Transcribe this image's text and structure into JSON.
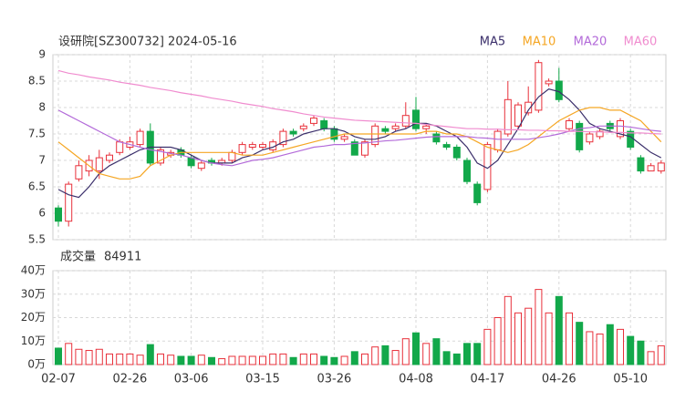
{
  "chart_data": {
    "type": "candlestick",
    "title": "设研院[SZ300732] 2024-05-16",
    "categories": [
      "02-07",
      null,
      null,
      null,
      null,
      null,
      null,
      "02-26",
      null,
      null,
      null,
      null,
      null,
      "03-06",
      null,
      null,
      null,
      null,
      null,
      null,
      "03-15",
      null,
      null,
      null,
      null,
      null,
      null,
      "03-26",
      null,
      null,
      null,
      null,
      null,
      null,
      null,
      "04-08",
      null,
      null,
      null,
      null,
      null,
      null,
      "04-17",
      null,
      null,
      null,
      null,
      null,
      null,
      "04-26",
      null,
      null,
      null,
      null,
      null,
      null,
      "05-10",
      null,
      null,
      null
    ],
    "open": [
      6.1,
      5.85,
      6.65,
      6.8,
      6.8,
      7.0,
      7.15,
      7.25,
      7.3,
      7.55,
      6.95,
      7.1,
      7.2,
      7.05,
      6.85,
      7.0,
      6.95,
      7.0,
      7.15,
      7.25,
      7.25,
      7.2,
      7.3,
      7.55,
      7.6,
      7.7,
      7.75,
      7.6,
      7.4,
      7.35,
      7.1,
      7.3,
      7.6,
      7.6,
      7.65,
      7.95,
      7.6,
      7.5,
      7.3,
      7.25,
      7.0,
      6.55,
      6.45,
      7.2,
      7.5,
      7.65,
      7.9,
      7.95,
      8.45,
      8.5,
      7.6,
      7.7,
      7.35,
      7.45,
      7.7,
      7.45,
      7.55,
      7.05,
      6.8,
      6.8
    ],
    "high": [
      6.15,
      6.6,
      7.0,
      7.1,
      7.2,
      7.15,
      7.4,
      7.45,
      7.6,
      7.7,
      7.25,
      7.2,
      7.25,
      7.1,
      7.0,
      7.05,
      7.05,
      7.2,
      7.35,
      7.35,
      7.35,
      7.4,
      7.6,
      7.6,
      7.7,
      7.85,
      7.8,
      7.65,
      7.5,
      7.4,
      7.4,
      7.7,
      7.65,
      7.7,
      8.1,
      8.2,
      7.7,
      7.55,
      7.35,
      7.3,
      7.05,
      6.6,
      7.35,
      7.6,
      8.5,
      8.1,
      8.4,
      8.9,
      8.55,
      8.75,
      7.8,
      7.75,
      7.55,
      7.6,
      7.75,
      7.8,
      7.6,
      7.1,
      6.95,
      7.0
    ],
    "low": [
      5.75,
      5.75,
      6.6,
      6.7,
      6.65,
      6.95,
      7.1,
      7.2,
      7.25,
      6.9,
      6.9,
      7.05,
      7.05,
      6.85,
      6.8,
      6.9,
      6.9,
      6.95,
      7.1,
      7.2,
      7.2,
      7.15,
      7.25,
      7.45,
      7.55,
      7.65,
      7.55,
      7.35,
      7.35,
      7.1,
      7.05,
      7.25,
      7.5,
      7.55,
      7.6,
      7.55,
      7.5,
      7.3,
      7.2,
      7.0,
      6.55,
      6.15,
      6.4,
      7.15,
      7.45,
      7.6,
      7.85,
      7.9,
      8.4,
      8.1,
      7.55,
      7.15,
      7.3,
      7.4,
      7.55,
      7.4,
      7.2,
      6.75,
      6.8,
      6.75
    ],
    "close": [
      5.85,
      6.55,
      6.9,
      7.0,
      7.05,
      7.1,
      7.35,
      7.35,
      7.55,
      6.95,
      7.2,
      7.15,
      7.1,
      6.9,
      6.95,
      6.95,
      7.0,
      7.15,
      7.3,
      7.3,
      7.3,
      7.35,
      7.55,
      7.5,
      7.65,
      7.8,
      7.6,
      7.4,
      7.45,
      7.1,
      7.35,
      7.65,
      7.55,
      7.65,
      7.85,
      7.6,
      7.65,
      7.35,
      7.25,
      7.05,
      6.6,
      6.2,
      7.3,
      7.55,
      8.15,
      8.05,
      8.1,
      8.85,
      8.5,
      8.15,
      7.75,
      7.2,
      7.5,
      7.55,
      7.6,
      7.75,
      7.25,
      6.8,
      6.9,
      6.95
    ],
    "ylim": [
      5.5,
      9
    ],
    "yticks": [
      5.5,
      6,
      6.5,
      7,
      7.5,
      8,
      8.5,
      9
    ],
    "up_color": "#e8313b",
    "down_color": "#12a84a",
    "grid": true,
    "series": [
      {
        "name": "MA5",
        "color": "#3b2f6b",
        "values": [
          6.45,
          6.35,
          6.3,
          6.5,
          6.75,
          6.9,
          7.0,
          7.1,
          7.2,
          7.25,
          7.25,
          7.25,
          7.2,
          7.1,
          7.0,
          6.95,
          6.95,
          6.95,
          7.05,
          7.1,
          7.2,
          7.25,
          7.35,
          7.4,
          7.5,
          7.55,
          7.6,
          7.6,
          7.55,
          7.45,
          7.4,
          7.4,
          7.45,
          7.55,
          7.6,
          7.7,
          7.7,
          7.65,
          7.55,
          7.45,
          7.25,
          6.95,
          6.85,
          7.0,
          7.3,
          7.6,
          7.95,
          8.2,
          8.35,
          8.3,
          8.15,
          7.95,
          7.7,
          7.6,
          7.55,
          7.5,
          7.45,
          7.3,
          7.15,
          7.05
        ]
      },
      {
        "name": "MA10",
        "color": "#f5a623",
        "values": [
          7.35,
          7.2,
          7.05,
          6.9,
          6.75,
          6.7,
          6.65,
          6.65,
          6.7,
          6.9,
          7.0,
          7.1,
          7.15,
          7.15,
          7.15,
          7.15,
          7.15,
          7.15,
          7.1,
          7.1,
          7.1,
          7.15,
          7.2,
          7.25,
          7.3,
          7.35,
          7.4,
          7.45,
          7.5,
          7.5,
          7.5,
          7.5,
          7.5,
          7.5,
          7.5,
          7.5,
          7.55,
          7.55,
          7.5,
          7.5,
          7.45,
          7.35,
          7.25,
          7.2,
          7.15,
          7.2,
          7.3,
          7.45,
          7.6,
          7.75,
          7.85,
          7.95,
          8.0,
          8.0,
          7.95,
          7.95,
          7.85,
          7.75,
          7.55,
          7.35
        ]
      },
      {
        "name": "MA20",
        "color": "#b36ad9",
        "values": [
          7.95,
          7.85,
          7.75,
          7.65,
          7.55,
          7.45,
          7.35,
          7.3,
          7.25,
          7.2,
          7.17,
          7.13,
          7.1,
          7.05,
          7.0,
          6.95,
          6.92,
          6.9,
          6.95,
          7.0,
          7.02,
          7.05,
          7.1,
          7.15,
          7.2,
          7.25,
          7.27,
          7.3,
          7.3,
          7.32,
          7.33,
          7.35,
          7.37,
          7.38,
          7.4,
          7.42,
          7.44,
          7.45,
          7.45,
          7.45,
          7.45,
          7.43,
          7.42,
          7.4,
          7.4,
          7.4,
          7.4,
          7.43,
          7.46,
          7.5,
          7.55,
          7.6,
          7.62,
          7.65,
          7.65,
          7.65,
          7.63,
          7.6,
          7.57,
          7.55
        ]
      },
      {
        "name": "MA60",
        "color": "#f08ccf",
        "values": [
          8.7,
          8.65,
          8.62,
          8.58,
          8.55,
          8.52,
          8.48,
          8.45,
          8.42,
          8.38,
          8.35,
          8.32,
          8.28,
          8.25,
          8.22,
          8.18,
          8.15,
          8.12,
          8.08,
          8.05,
          8.02,
          7.98,
          7.95,
          7.92,
          7.88,
          7.85,
          7.82,
          7.8,
          7.78,
          7.76,
          7.75,
          7.74,
          7.73,
          7.72,
          7.71,
          7.7,
          7.68,
          7.66,
          7.64,
          7.62,
          7.6,
          7.6,
          7.59,
          7.59,
          7.58,
          7.58,
          7.57,
          7.57,
          7.56,
          7.56,
          7.55,
          7.55,
          7.54,
          7.54,
          7.53,
          7.53,
          7.52,
          7.52,
          7.51,
          7.5
        ]
      }
    ],
    "volume_title": "成交量",
    "volume_latest": 84911,
    "volume": [
      7,
      9,
      6.5,
      6,
      6.5,
      4.5,
      4.5,
      4.5,
      4,
      8.5,
      4.5,
      4,
      3.5,
      3.5,
      4,
      3,
      2.5,
      3.5,
      3.5,
      3.5,
      3.5,
      4.5,
      4.5,
      3,
      4.5,
      4.5,
      3.5,
      3,
      3.5,
      5.5,
      4.5,
      7.5,
      8,
      6,
      11,
      13.5,
      9,
      11,
      5.5,
      4.5,
      9,
      9,
      15,
      20,
      29,
      22,
      24,
      32,
      22,
      29,
      22,
      18,
      14,
      13,
      17,
      15,
      12,
      10,
      5.5,
      8
    ],
    "vlim": [
      0,
      40
    ],
    "vticks": [
      {
        "value": 0,
        "label": "0万"
      },
      {
        "value": 10,
        "label": "10万"
      },
      {
        "value": 20,
        "label": "20万"
      },
      {
        "value": 30,
        "label": "30万"
      },
      {
        "value": 40,
        "label": "40万"
      }
    ]
  }
}
